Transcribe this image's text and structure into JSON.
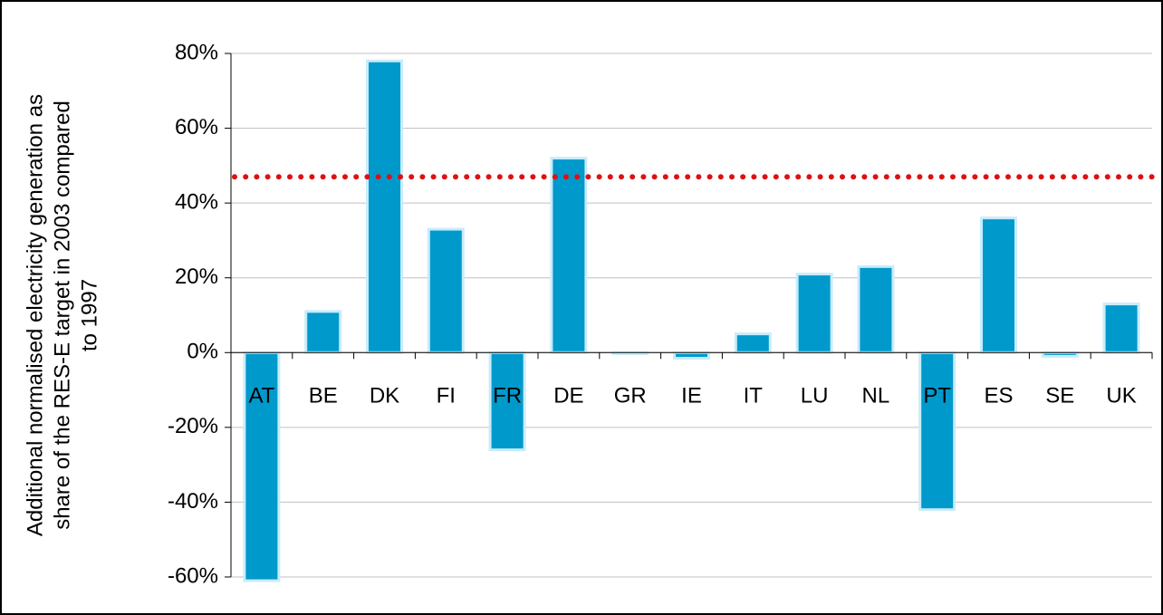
{
  "chart_data": {
    "type": "bar",
    "ylabel": [
      "Additional normalised electricity generation as",
      "share of the RES-E target in 2003 compared",
      "to 1997"
    ],
    "categories": [
      "AT",
      "BE",
      "DK",
      "FI",
      "FR",
      "DE",
      "GR",
      "IE",
      "IT",
      "LU",
      "NL",
      "PT",
      "ES",
      "SE",
      "UK"
    ],
    "values": [
      -61,
      11,
      78,
      33,
      -26,
      52,
      -0.3,
      -1.5,
      5,
      21,
      23,
      -42,
      36,
      -1,
      13
    ],
    "color": "#0099cc",
    "ylim": [
      -60,
      80
    ],
    "yticks": [
      {
        "value": -60,
        "label": "-60%"
      },
      {
        "value": -40,
        "label": "-40%"
      },
      {
        "value": -20,
        "label": "-20%"
      },
      {
        "value": 0,
        "label": "0%"
      },
      {
        "value": 20,
        "label": "20%"
      },
      {
        "value": 40,
        "label": "40%"
      },
      {
        "value": 60,
        "label": "60%"
      },
      {
        "value": 80,
        "label": "80%"
      }
    ],
    "grid": true,
    "reference_line": {
      "value": 47,
      "color": "#dd1111"
    }
  }
}
